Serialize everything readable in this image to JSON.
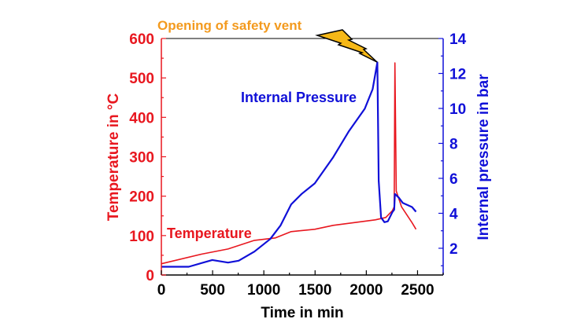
{
  "chart_data": {
    "type": "line",
    "title": "",
    "annotation": "Opening of safety vent",
    "annotation_icon": "lightning-bolt-icon",
    "xlabel": "Time in min",
    "ylabel_left": "Temperature in °C",
    "ylabel_right": "Internal pressure in bar",
    "xlim": [
      0,
      2750
    ],
    "ylim_left": [
      0,
      600
    ],
    "ylim_right": [
      0.47,
      14
    ],
    "x_ticks": [
      "0",
      "500",
      "1000",
      "1500",
      "2000",
      "2500"
    ],
    "y_left_ticks": [
      "0",
      "100",
      "200",
      "300",
      "400",
      "500",
      "600"
    ],
    "y_right_ticks": [
      "2",
      "4",
      "6",
      "8",
      "10",
      "12",
      "14"
    ],
    "grid": false,
    "colors": {
      "temperature": "#e8171f",
      "pressure": "#1010d8",
      "annotation": "#f39a1e",
      "bolt": "#f6b817"
    },
    "series": [
      {
        "name": "Temperature",
        "axis": "left",
        "x": [
          0,
          395,
          651,
          908,
          1113,
          1267,
          1497,
          1677,
          2087,
          2190,
          2254,
          2272,
          2279,
          2292,
          2344,
          2446,
          2485
        ],
        "y": [
          28.6,
          53,
          66,
          88,
          94,
          110,
          116,
          126,
          140,
          146,
          163,
          173,
          538,
          213,
          173,
          133,
          116
        ]
      },
      {
        "name": "Internal Pressure",
        "axis": "right",
        "x": [
          0,
          267,
          497,
          651,
          754,
          908,
          1062,
          1164,
          1267,
          1369,
          1497,
          1677,
          1831,
          1985,
          2062,
          2108,
          2121,
          2144,
          2177,
          2210,
          2254,
          2272,
          2279,
          2318,
          2356,
          2446,
          2485
        ],
        "y": [
          0.94,
          0.94,
          1.33,
          1.18,
          1.29,
          1.81,
          2.53,
          3.31,
          4.51,
          5.11,
          5.71,
          7.21,
          8.71,
          9.98,
          11.1,
          12.64,
          5.86,
          3.76,
          3.49,
          3.54,
          4.06,
          4.21,
          5.11,
          4.89,
          4.59,
          4.36,
          4.09
        ]
      }
    ]
  }
}
